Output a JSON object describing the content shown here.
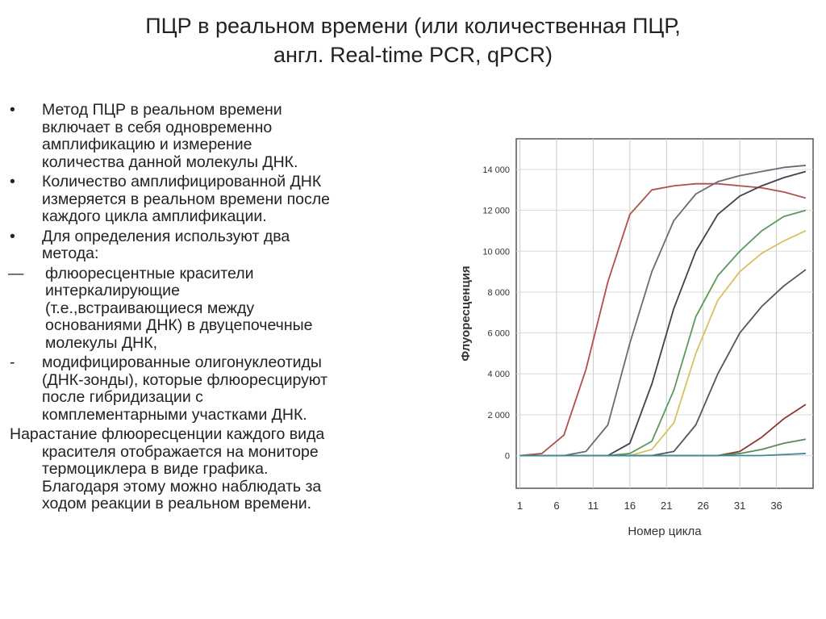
{
  "title": [
    "ПЦР в реальном времени (или количественная ПЦР,",
    "англ. Real-time PCR, qPCR)"
  ],
  "items": [
    {
      "marker": "•",
      "lines": [
        "Метод ПЦР в реальном времени",
        "включает в себя одновременно",
        "амплификацию и измерение",
        "количества данной молекулы ДНК."
      ]
    },
    {
      "marker": "•",
      "lines": [
        "Количество амплифицированной ДНК",
        "измеряется в реальном времени после",
        "каждого цикла амплификации."
      ]
    },
    {
      "marker": "•",
      "lines": [
        "Для определения используют два",
        "метода:"
      ]
    },
    {
      "marker": "—",
      "lines": [
        "флюоресцентные красители",
        "интеркалирующие",
        "(т.е.,встраивающиеся между",
        "основаниями ДНК) в двуцепочечные",
        "молекулы ДНК,"
      ]
    },
    {
      "marker": "-",
      "lines": [
        "модифицированные олигонуклеотиды",
        "(ДНК-зонды), которые флюоресцируют",
        "после гибридизации с",
        "комплементарными участками ДНК."
      ]
    },
    {
      "lines": [
        "Нарастание флюоресценции каждого вида",
        "красителя отображается на мониторе",
        "термоциклера в виде графика.",
        "Благодаря этому можно наблюдать за",
        "ходом реакции в реальном времени."
      ]
    }
  ],
  "chart_data": {
    "type": "line",
    "xlabel": "Номер цикла",
    "ylabel": "Флуоресценция",
    "x": [
      1,
      4,
      7,
      10,
      13,
      16,
      19,
      22,
      25,
      28,
      31,
      34,
      37,
      40
    ],
    "xlim": [
      0.5,
      41
    ],
    "xticks": [
      1,
      6,
      11,
      16,
      21,
      26,
      31,
      36
    ],
    "ylim": [
      -1600,
      15500
    ],
    "yticks": [
      0,
      {
        "value": 2000,
        "label": "2 000"
      },
      {
        "value": 4000,
        "label": "4 000"
      },
      {
        "value": 6000,
        "label": "6 000"
      },
      {
        "value": 8000,
        "label": "8 000"
      },
      {
        "value": 10000,
        "label": "10 000"
      },
      {
        "value": 12000,
        "label": "12 000"
      },
      {
        "value": 14000,
        "label": "14 000"
      }
    ],
    "grid": true,
    "series": [
      {
        "color": "#b0504a",
        "values": [
          0,
          100,
          1000,
          4200,
          8500,
          11800,
          13000,
          13200,
          13300,
          13300,
          13200,
          13100,
          12900,
          12600
        ]
      },
      {
        "color": "#6a6a78",
        "values": [
          0,
          0,
          0,
          200,
          1500,
          5500,
          9000,
          11500,
          12800,
          13400,
          13700,
          13900,
          14100,
          14200
        ]
      },
      {
        "color": "#404050",
        "values": [
          0,
          0,
          0,
          0,
          0,
          600,
          3500,
          7200,
          10000,
          11800,
          12700,
          13200,
          13600,
          13900
        ]
      },
      {
        "color": "#5a9a5a",
        "values": [
          0,
          0,
          0,
          0,
          0,
          100,
          700,
          3200,
          6800,
          8800,
          10000,
          11000,
          11700,
          12000
        ]
      },
      {
        "color": "#d8c060",
        "values": [
          0,
          0,
          0,
          0,
          0,
          0,
          300,
          1600,
          5000,
          7600,
          9000,
          9900,
          10500,
          11000
        ]
      },
      {
        "color": "#55555f",
        "values": [
          0,
          0,
          0,
          0,
          0,
          0,
          0,
          200,
          1500,
          4000,
          6000,
          7300,
          8300,
          9100
        ]
      },
      {
        "color": "#8a3a30",
        "values": [
          0,
          0,
          0,
          0,
          0,
          0,
          0,
          0,
          0,
          0,
          200,
          900,
          1800,
          2500
        ]
      },
      {
        "color": "#5a8a5a",
        "values": [
          0,
          0,
          0,
          0,
          0,
          0,
          0,
          0,
          0,
          0,
          100,
          300,
          600,
          800
        ]
      },
      {
        "color": "#3a8a9a",
        "values": [
          0,
          0,
          0,
          0,
          0,
          0,
          0,
          0,
          0,
          0,
          0,
          0,
          50,
          100
        ]
      }
    ]
  }
}
